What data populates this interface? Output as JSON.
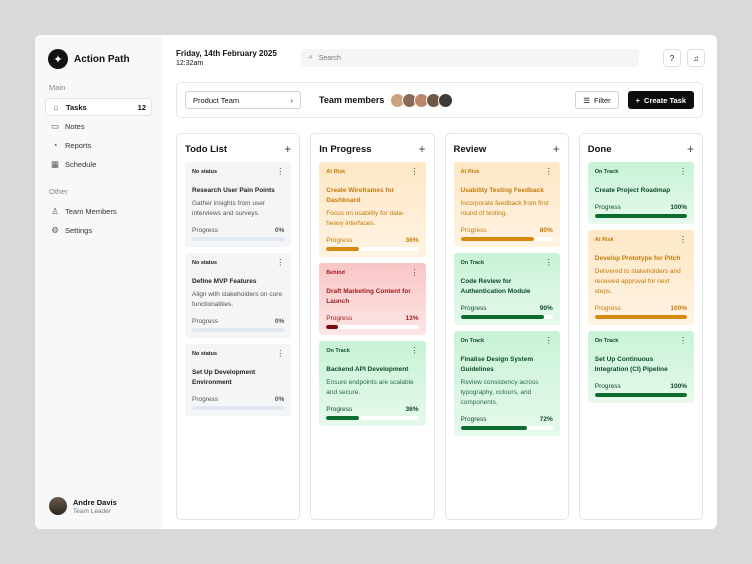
{
  "sidebar": {
    "brand": "Action Path",
    "brand_icon": "sparkle-icon",
    "main_label": "Main",
    "other_label": "Other",
    "main_items": [
      {
        "label": "Tasks",
        "icon": "home-icon",
        "glyph": "⌂",
        "count": "12"
      },
      {
        "label": "Notes",
        "icon": "chat-icon",
        "glyph": "▭",
        "count": ""
      },
      {
        "label": "Reports",
        "icon": "chart-icon",
        "glyph": "◔",
        "count": ""
      },
      {
        "label": "Schedule",
        "icon": "calendar-icon",
        "glyph": "▦",
        "count": ""
      }
    ],
    "other_items": [
      {
        "label": "Team Members",
        "icon": "user-icon",
        "glyph": "♙"
      },
      {
        "label": "Settings",
        "icon": "gear-icon",
        "glyph": "⚙"
      }
    ],
    "user": {
      "name": "Andre Davis",
      "role": "Team Leader"
    }
  },
  "header": {
    "date": "Friday, 14th February 2025",
    "time": "12:32am",
    "search_placeholder": "Search"
  },
  "toolbar": {
    "team_select": "Product Team",
    "team_members_label": "Team members",
    "avatar_colors": [
      "#c9a27e",
      "#8a6b55",
      "#b9876a",
      "#6d5847",
      "#3f3a36"
    ],
    "filter_label": "Filter",
    "create_label": "Create Task"
  },
  "columns": [
    {
      "title": "Todo List",
      "cards": [
        {
          "status": "No status",
          "tone": "gray",
          "title": "Research User Pain Points",
          "desc": "Gather insights from user interviews and surveys.",
          "progress_label": "Progress",
          "progress": 0,
          "progress_text": "0%"
        },
        {
          "status": "No status",
          "tone": "gray",
          "title": "Define MVP Features",
          "desc": "Align with stakeholders on core functionalities.",
          "progress_label": "Progress",
          "progress": 0,
          "progress_text": "0%"
        },
        {
          "status": "No status",
          "tone": "gray",
          "title": "Set Up Development Environment",
          "desc": "",
          "progress_label": "Progress",
          "progress": 0,
          "progress_text": "0%"
        }
      ]
    },
    {
      "title": "In Progress",
      "cards": [
        {
          "status": "At Risk",
          "tone": "orange",
          "title": "Create Wireframes for Dashboard",
          "desc": "Focus on usability for data-heavy interfaces.",
          "progress_label": "Progress",
          "progress": 36,
          "progress_text": "36%"
        },
        {
          "status": "Behind",
          "tone": "red",
          "title": "Draft Marketing Content for Launch",
          "desc": "",
          "progress_label": "Progress",
          "progress": 13,
          "progress_text": "13%"
        },
        {
          "status": "On Track",
          "tone": "green",
          "title": "Backend API Development",
          "desc": "Ensure endpoints are scalable and secure.",
          "progress_label": "Progress",
          "progress": 36,
          "progress_text": "36%"
        }
      ]
    },
    {
      "title": "Review",
      "cards": [
        {
          "status": "At Risk",
          "tone": "orange",
          "title": "Usability Testing Feedback",
          "desc": "Incorporate feedback from first round of testing.",
          "progress_label": "Progress",
          "progress": 80,
          "progress_text": "80%"
        },
        {
          "status": "On Track",
          "tone": "green",
          "title": "Code Review for Authentication Module",
          "desc": "",
          "progress_label": "Progress",
          "progress": 90,
          "progress_text": "90%"
        },
        {
          "status": "On Track",
          "tone": "green",
          "title": "Finalise Design System Guidelines",
          "desc": "Review consistency across typography, colours, and components.",
          "progress_label": "Progress",
          "progress": 72,
          "progress_text": "72%"
        }
      ]
    },
    {
      "title": "Done",
      "cards": [
        {
          "status": "On Track",
          "tone": "green",
          "title": "Create Project Roadmap",
          "desc": "",
          "progress_label": "Progress",
          "progress": 100,
          "progress_text": "100%"
        },
        {
          "status": "At Risk",
          "tone": "orange",
          "title": "Develop Prototype for Pitch",
          "desc": "Delivered to stakeholders and received approval for next steps.",
          "progress_label": "Progress",
          "progress": 100,
          "progress_text": "100%"
        },
        {
          "status": "On Track",
          "tone": "green",
          "title": "Set Up Continuous Integration (CI) Pipeline",
          "desc": "",
          "progress_label": "Progress",
          "progress": 100,
          "progress_text": "100%"
        }
      ]
    }
  ]
}
